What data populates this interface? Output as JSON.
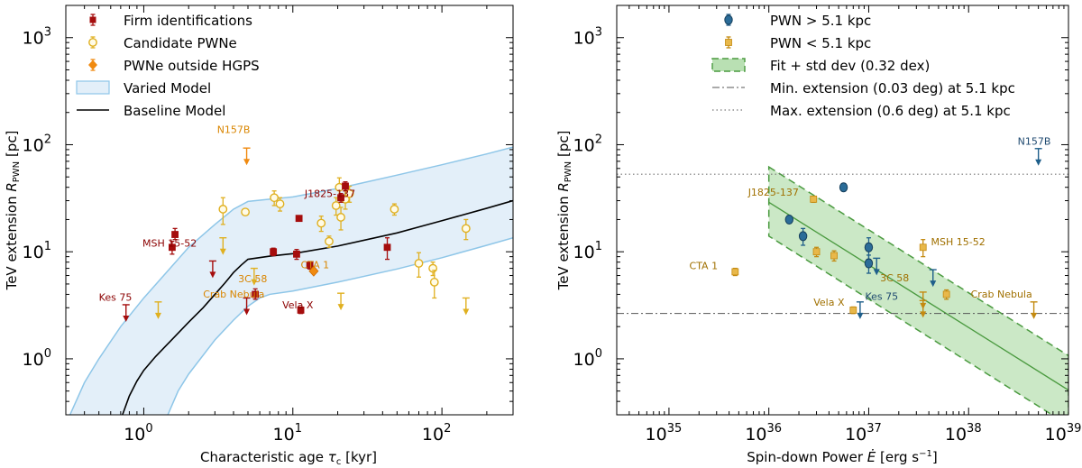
{
  "colors": {
    "firm": "#a50d0d",
    "candidate": "#e0b020",
    "outside": "#f08a10",
    "model_fill": "#e3eff9",
    "model_edge": "#8ec6e8",
    "pwn_far": "#1f5f8b",
    "pwn_near": "#c48a10",
    "fit_fill": "#b9e0b3",
    "fit_edge": "#4a9a3f",
    "orange_label": "#d98500",
    "red_label": "#8b0000",
    "blue_label": "#1f4a70",
    "gold_label": "#a07000"
  },
  "chart_data": [
    {
      "type": "scatter",
      "xlabel": "Characteristic age τ_c [kyr]",
      "ylabel": "TeV extension R_PWN [pc]",
      "xscale": "log",
      "yscale": "log",
      "xlim": [
        0.3,
        300
      ],
      "ylim": [
        0.3,
        2000
      ],
      "x_ticks": [
        {
          "v": 1,
          "m": "0"
        },
        {
          "v": 10,
          "m": "1"
        },
        {
          "v": 100,
          "m": "2"
        }
      ],
      "y_ticks": [
        {
          "v": 1,
          "m": "0"
        },
        {
          "v": 10,
          "m": "1"
        },
        {
          "v": 100,
          "m": "2"
        },
        {
          "v": 1000,
          "m": "3"
        }
      ],
      "legend_position": "top-left",
      "legend": [
        "Firm identifications",
        "Candidate PWNe",
        "PWNe outside HGPS",
        "Varied Model",
        "Baseline Model"
      ],
      "firm_points": [
        {
          "x": 1.55,
          "y": 11.0,
          "lo": 1.5,
          "hi": 1.5
        },
        {
          "x": 1.62,
          "y": 14.5,
          "lo": 1.5,
          "hi": 2.0
        },
        {
          "x": 5.6,
          "y": 4.0,
          "lo": 0.4,
          "hi": 0.5
        },
        {
          "x": 7.4,
          "y": 10.0,
          "lo": 0.8,
          "hi": 0.8
        },
        {
          "x": 10.6,
          "y": 9.5,
          "lo": 1.0,
          "hi": 1.0
        },
        {
          "x": 11.0,
          "y": 20.5,
          "lo": 1.2,
          "hi": 1.2
        },
        {
          "x": 11.3,
          "y": 2.85,
          "lo": 0.2,
          "hi": 0.2
        },
        {
          "x": 13.0,
          "y": 7.5,
          "lo": 0.6,
          "hi": 0.6
        },
        {
          "x": 21.0,
          "y": 32.0,
          "lo": 3.0,
          "hi": 3.0
        },
        {
          "x": 22.5,
          "y": 41.0,
          "lo": 4.0,
          "hi": 4.0
        },
        {
          "x": 43.0,
          "y": 11.0,
          "lo": 2.5,
          "hi": 2.5
        }
      ],
      "firm_upper_limits": [
        {
          "x": 0.76,
          "y": 3.2
        },
        {
          "x": 2.9,
          "y": 8.2
        },
        {
          "x": 4.9,
          "y": 3.7
        }
      ],
      "candidate_points": [
        {
          "x": 3.4,
          "y": 25.0,
          "lo": 7.0,
          "hi": 7.0
        },
        {
          "x": 4.8,
          "y": 23.5,
          "lo": 1.0,
          "hi": 1.0
        },
        {
          "x": 7.5,
          "y": 32.0,
          "lo": 5.0,
          "hi": 5.0
        },
        {
          "x": 8.2,
          "y": 28.0,
          "lo": 4.0,
          "hi": 4.0
        },
        {
          "x": 15.5,
          "y": 18.5,
          "lo": 3.0,
          "hi": 3.0
        },
        {
          "x": 17.5,
          "y": 12.5,
          "lo": 1.5,
          "hi": 1.5
        },
        {
          "x": 19.5,
          "y": 27.0,
          "lo": 5.0,
          "hi": 5.0
        },
        {
          "x": 20.5,
          "y": 40.0,
          "lo": 9.0,
          "hi": 9.0
        },
        {
          "x": 21.0,
          "y": 21.0,
          "lo": 5.0,
          "hi": 5.0
        },
        {
          "x": 22.5,
          "y": 31.0,
          "lo": 6.0,
          "hi": 6.0
        },
        {
          "x": 24.0,
          "y": 35.0,
          "lo": 6.0,
          "hi": 6.0
        },
        {
          "x": 48.0,
          "y": 25.0,
          "lo": 3.0,
          "hi": 3.0
        },
        {
          "x": 70.0,
          "y": 7.8,
          "lo": 2.0,
          "hi": 2.0
        },
        {
          "x": 87.0,
          "y": 7.0,
          "lo": 1.0,
          "hi": 1.0
        },
        {
          "x": 89.0,
          "y": 5.2,
          "lo": 1.5,
          "hi": 1.5
        },
        {
          "x": 145.0,
          "y": 16.5,
          "lo": 3.5,
          "hi": 3.5
        }
      ],
      "candidate_upper_limits": [
        {
          "x": 1.25,
          "y": 3.4
        },
        {
          "x": 3.4,
          "y": 13.5
        },
        {
          "x": 5.5,
          "y": 7.0
        },
        {
          "x": 21.0,
          "y": 4.1
        },
        {
          "x": 145.0,
          "y": 3.7
        }
      ],
      "outside_points": [
        {
          "x": 13.8,
          "y": 6.6
        }
      ],
      "outside_upper_limits": [
        {
          "x": 4.9,
          "y": 93.0
        }
      ],
      "baseline_model": {
        "x": [
          0.72,
          0.8,
          0.9,
          1.0,
          1.2,
          1.5,
          2.0,
          2.5,
          3.0,
          3.5,
          4.0,
          4.5,
          5.0,
          7.0,
          10,
          20,
          50,
          100,
          200,
          300
        ],
        "y": [
          0.3,
          0.45,
          0.62,
          0.78,
          1.05,
          1.45,
          2.2,
          3.0,
          4.0,
          5.1,
          6.4,
          7.5,
          8.5,
          9.1,
          9.6,
          11.3,
          15.0,
          19.5,
          25.5,
          30.0
        ]
      },
      "varied_model_upper": {
        "x": [
          0.32,
          0.4,
          0.5,
          0.7,
          1.0,
          1.5,
          2.0,
          3.0,
          4.0,
          5.0,
          7.0,
          10,
          20,
          50,
          100,
          200,
          300
        ],
        "y": [
          0.3,
          0.6,
          1.0,
          2.0,
          3.7,
          7.0,
          11.0,
          18.0,
          25.0,
          29.5,
          31.0,
          32.5,
          39.0,
          52.0,
          65.0,
          82.0,
          95.0
        ]
      },
      "varied_model_lower": {
        "x": [
          1.45,
          1.7,
          2.0,
          3.0,
          4.0,
          5.0,
          6.0,
          7.0,
          10,
          20,
          50,
          100,
          200,
          300
        ],
        "y": [
          0.3,
          0.5,
          0.72,
          1.5,
          2.3,
          3.1,
          3.7,
          4.0,
          4.3,
          5.2,
          6.9,
          8.8,
          11.5,
          13.5
        ]
      },
      "annotations": [
        {
          "text": "N157B",
          "x": 3.1,
          "y": 128,
          "color": "orange_label"
        },
        {
          "text": "J1825-137",
          "x": 12.0,
          "y": 32.5,
          "color": "red_label"
        },
        {
          "text": "MSH 15-52",
          "x": 0.98,
          "y": 11.2,
          "color": "red_label"
        },
        {
          "text": "CTA 1",
          "x": 11.3,
          "y": 7.0,
          "color": "orange_label"
        },
        {
          "text": "3C 58",
          "x": 4.3,
          "y": 5.2,
          "color": "orange_label"
        },
        {
          "text": "Crab Nebula",
          "x": 2.5,
          "y": 3.75,
          "color": "orange_label"
        },
        {
          "text": "Kes 75",
          "x": 0.5,
          "y": 3.5,
          "color": "red_label"
        },
        {
          "text": "Vela X",
          "x": 8.5,
          "y": 2.95,
          "color": "red_label"
        }
      ]
    },
    {
      "type": "scatter",
      "xlabel": "Spin-down Power Ė [erg s⁻¹]",
      "ylabel": "TeV extension R_PWN [pc]",
      "xscale": "log",
      "yscale": "log",
      "xlim": [
        3e+34,
        1e+39
      ],
      "ylim": [
        0.3,
        2000
      ],
      "x_ticks": [
        {
          "v": 1e+35,
          "m": "35"
        },
        {
          "v": 1e+36,
          "m": "36"
        },
        {
          "v": 1e+37,
          "m": "37"
        },
        {
          "v": 1e+38,
          "m": "38"
        },
        {
          "v": 1e+39,
          "m": "39"
        }
      ],
      "y_ticks": [
        {
          "v": 1,
          "m": "0"
        },
        {
          "v": 10,
          "m": "1"
        },
        {
          "v": 100,
          "m": "2"
        },
        {
          "v": 1000,
          "m": "3"
        }
      ],
      "legend_position": "top-right",
      "legend": [
        "PWN > 5.1 kpc",
        "PWN < 5.1 kpc",
        "Fit + std dev (0.32 dex)",
        "Min. extension (0.03 deg) at 5.1 kpc",
        "Max. extension (0.6 deg) at 5.1 kpc"
      ],
      "min_extension_pc": 2.65,
      "max_extension_pc": 53,
      "far_points": [
        {
          "x": 1.6e+36,
          "y": 20.0,
          "lo": 1.5,
          "hi": 1.5
        },
        {
          "x": 2.2e+36,
          "y": 14.0,
          "lo": 2.5,
          "hi": 2.5
        },
        {
          "x": 5.6e+36,
          "y": 40.0,
          "lo": 3.0,
          "hi": 3.0
        },
        {
          "x": 1e+37,
          "y": 11.0,
          "lo": 2.5,
          "hi": 2.5
        },
        {
          "x": 1e+37,
          "y": 7.8,
          "lo": 1.5,
          "hi": 1.5
        }
      ],
      "far_upper_limits": [
        {
          "x": 1.2e+37,
          "y": 8.7
        },
        {
          "x": 8.2e+36,
          "y": 3.4
        },
        {
          "x": 4.4e+37,
          "y": 6.8
        },
        {
          "x": 5e+38,
          "y": 92
        }
      ],
      "near_points": [
        {
          "x": 4.6e+35,
          "y": 6.5,
          "lo": 0.5,
          "hi": 0.5
        },
        {
          "x": 2.8e+36,
          "y": 31.0,
          "lo": 2.0,
          "hi": 2.0
        },
        {
          "x": 3e+36,
          "y": 10.0,
          "lo": 1.0,
          "hi": 1.0
        },
        {
          "x": 4.5e+36,
          "y": 9.2,
          "lo": 1.0,
          "hi": 1.0
        },
        {
          "x": 7e+36,
          "y": 2.85,
          "lo": 0.2,
          "hi": 0.2
        },
        {
          "x": 3.5e+37,
          "y": 11.0,
          "lo": 2.0,
          "hi": 2.0
        },
        {
          "x": 6e+37,
          "y": 4.0,
          "lo": 0.4,
          "hi": 0.4
        }
      ],
      "near_upper_limits": [
        {
          "x": 3.5e+37,
          "y": 4.2
        },
        {
          "x": 3.5e+37,
          "y": 3.5
        },
        {
          "x": 4.5e+38,
          "y": 3.4
        }
      ],
      "fit_line": {
        "x": [
          1e+36,
          1e+39
        ],
        "y": [
          29,
          0.51
        ]
      },
      "fit_band_upper": {
        "x": [
          1e+36,
          1e+39
        ],
        "y": [
          62,
          1.07
        ]
      },
      "fit_band_lower": {
        "x": [
          1e+36,
          1e+39
        ],
        "y": [
          14,
          0.24
        ]
      },
      "annotations": [
        {
          "text": "N157B",
          "x": 3.1e+38,
          "y": 100,
          "color": "blue_label"
        },
        {
          "text": "J1825-137",
          "x": 6.2e+35,
          "y": 33.5,
          "color": "gold_label"
        },
        {
          "text": "MSH 15-52",
          "x": 4.2e+37,
          "y": 11.5,
          "color": "gold_label"
        },
        {
          "text": "CTA 1",
          "x": 1.6e+35,
          "y": 6.9,
          "color": "gold_label"
        },
        {
          "text": "3C 58",
          "x": 1.3e+37,
          "y": 5.3,
          "color": "gold_label"
        },
        {
          "text": "Crab Nebula",
          "x": 1.05e+38,
          "y": 3.75,
          "color": "gold_label"
        },
        {
          "text": "Vela X",
          "x": 2.8e+36,
          "y": 3.15,
          "color": "gold_label"
        },
        {
          "text": "Kes 75",
          "x": 9.2e+36,
          "y": 3.55,
          "color": "blue_label"
        }
      ]
    }
  ]
}
